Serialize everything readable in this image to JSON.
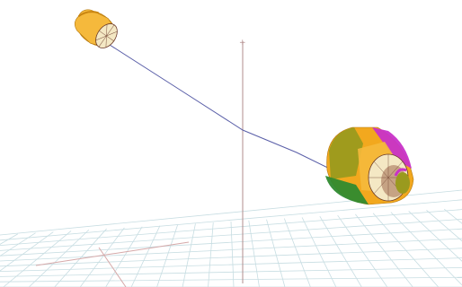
{
  "viewport": {
    "background": "#ffffff",
    "axis_label": "+",
    "colors": {
      "grid": "#c7dde2",
      "grid_accent": "#d6a9a9",
      "axis": "#b28c8c",
      "tether": "#5a5fa8",
      "orange": "#f2a81e",
      "orange_dark": "#c98510",
      "olive": "#9a9a1e",
      "magenta": "#c832c8",
      "green": "#2f8a2f",
      "cream": "#f4e8c4",
      "brown": "#6b3a2a"
    },
    "objects": [
      {
        "name": "small-capsule",
        "icon": "capsule-icon"
      },
      {
        "name": "large-capsule",
        "icon": "capsule-icon"
      },
      {
        "name": "tether-line",
        "icon": "line-icon"
      },
      {
        "name": "vertical-axis",
        "icon": "axis-icon"
      },
      {
        "name": "ground-grid",
        "icon": "grid-icon"
      }
    ]
  }
}
